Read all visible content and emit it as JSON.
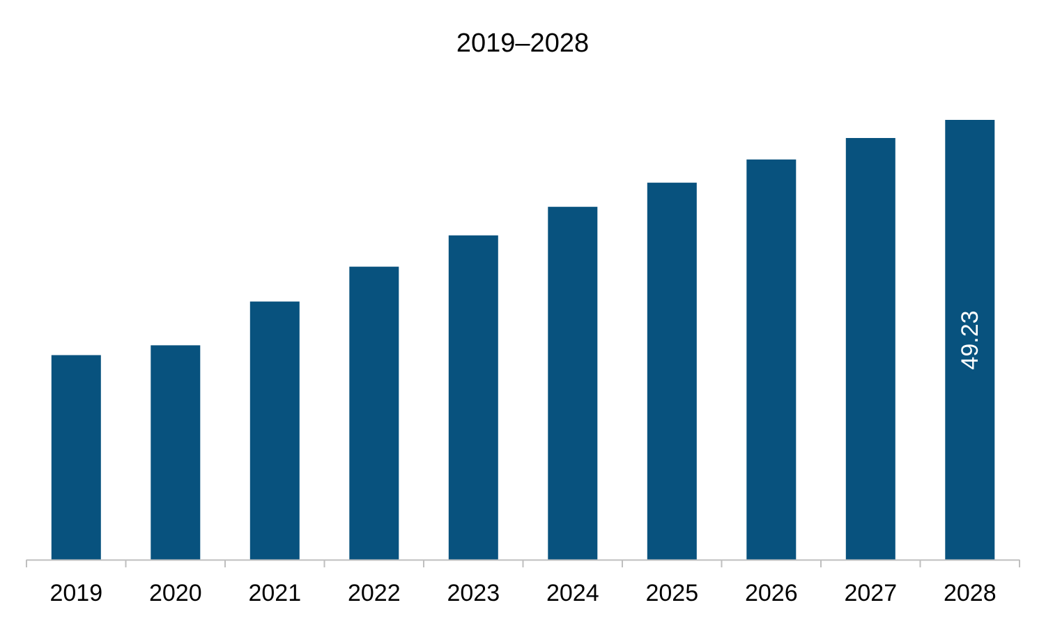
{
  "chart_data": {
    "type": "bar",
    "title": "2019–2028",
    "xlabel": "",
    "ylabel": "",
    "categories": [
      "2019",
      "2020",
      "2021",
      "2022",
      "2023",
      "2024",
      "2025",
      "2026",
      "2027",
      "2028"
    ],
    "values": [
      22.9,
      24.0,
      28.9,
      32.8,
      36.3,
      39.5,
      42.2,
      44.8,
      47.2,
      49.23
    ],
    "ylim": [
      0,
      50
    ],
    "grid": false,
    "legend": "none",
    "data_labels": [
      {
        "category": "2028",
        "text": "49.23",
        "orientation": "vertical"
      }
    ],
    "colors": {
      "bar": "#08527e",
      "axis": "#bfbfbf",
      "text": "#000000",
      "value_label": "#ffffff"
    }
  }
}
